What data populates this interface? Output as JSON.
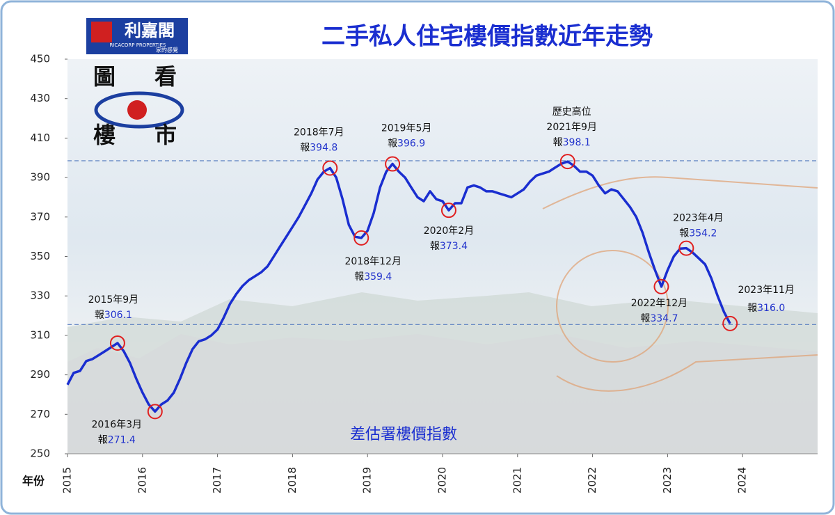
{
  "header": {
    "logo": "利嘉閣",
    "logo_en": "RICACORP PROPERTIES",
    "logo_slogan": "家的感覺",
    "badge": [
      "圖",
      "看",
      "樓",
      "市"
    ]
  },
  "chart_data": {
    "type": "line",
    "title": "二手私人住宅樓價指數近年走勢",
    "source": "差估署樓價指數",
    "x_label": "年份",
    "color": "#1a2ed0",
    "x": [
      2015.0,
      2015.083,
      2015.167,
      2015.25,
      2015.333,
      2015.417,
      2015.5,
      2015.583,
      2015.667,
      2015.75,
      2015.833,
      2015.917,
      2016.0,
      2016.083,
      2016.167,
      2016.25,
      2016.333,
      2016.417,
      2016.5,
      2016.583,
      2016.667,
      2016.75,
      2016.833,
      2016.917,
      2017.0,
      2017.083,
      2017.167,
      2017.25,
      2017.333,
      2017.417,
      2017.5,
      2017.583,
      2017.667,
      2017.75,
      2017.833,
      2017.917,
      2018.0,
      2018.083,
      2018.167,
      2018.25,
      2018.333,
      2018.417,
      2018.5,
      2018.583,
      2018.667,
      2018.75,
      2018.833,
      2018.917,
      2019.0,
      2019.083,
      2019.167,
      2019.25,
      2019.333,
      2019.417,
      2019.5,
      2019.583,
      2019.667,
      2019.75,
      2019.833,
      2019.917,
      2020.0,
      2020.083,
      2020.167,
      2020.25,
      2020.333,
      2020.417,
      2020.5,
      2020.583,
      2020.667,
      2020.75,
      2020.833,
      2020.917,
      2021.0,
      2021.083,
      2021.167,
      2021.25,
      2021.333,
      2021.417,
      2021.5,
      2021.583,
      2021.667,
      2021.75,
      2021.833,
      2021.917,
      2022.0,
      2022.083,
      2022.167,
      2022.25,
      2022.333,
      2022.417,
      2022.5,
      2022.583,
      2022.667,
      2022.75,
      2022.833,
      2022.917,
      2023.0,
      2023.083,
      2023.167,
      2023.25,
      2023.333,
      2023.417,
      2023.5,
      2023.583,
      2023.667,
      2023.75,
      2023.833
    ],
    "values": [
      285,
      291,
      292,
      297,
      298,
      300,
      302,
      304,
      306.1,
      302,
      296,
      288,
      281,
      275,
      271.4,
      275,
      277,
      281,
      288,
      296,
      303,
      307,
      308,
      310,
      313,
      319,
      326,
      331,
      335,
      338,
      340,
      342,
      345,
      350,
      355,
      360,
      365,
      370,
      376,
      382,
      389,
      393,
      394.8,
      390,
      379,
      366,
      360,
      359.4,
      363,
      372,
      385,
      393,
      396.9,
      393,
      390,
      385,
      380,
      378,
      383,
      379,
      378,
      373.4,
      377,
      377,
      385,
      386,
      385,
      383,
      383,
      382,
      381,
      380,
      382,
      384,
      388,
      391,
      392,
      393,
      395,
      397,
      398.1,
      396,
      393,
      393,
      391,
      386,
      382,
      384,
      383,
      379,
      375,
      370,
      362,
      352,
      343,
      334.7,
      343,
      350,
      354,
      354.2,
      352,
      349,
      346,
      339,
      330,
      322,
      316.0
    ],
    "annotations": [
      {
        "label": "2015年9月",
        "prefix": "報",
        "x": 2015.667,
        "value": 306.1,
        "value_label": "306.1"
      },
      {
        "label": "2016年3月",
        "prefix": "報",
        "x": 2016.167,
        "value": 271.4,
        "value_label": "271.4"
      },
      {
        "label": "2018年7月",
        "prefix": "報",
        "x": 2018.5,
        "value": 394.8,
        "value_label": "394.8"
      },
      {
        "label": "2018年12月",
        "prefix": "報",
        "x": 2018.917,
        "value": 359.4,
        "value_label": "359.4"
      },
      {
        "label": "2019年5月",
        "prefix": "報",
        "x": 2019.333,
        "value": 396.9,
        "value_label": "396.9"
      },
      {
        "label": "2020年2月",
        "prefix": "報",
        "x": 2020.083,
        "value": 373.4,
        "value_label": "373.4"
      },
      {
        "title": "歷史高位",
        "label": "2021年9月",
        "prefix": "報",
        "x": 2021.667,
        "value": 398.1,
        "value_label": "398.1"
      },
      {
        "label": "2022年12月",
        "prefix": "報",
        "x": 2022.917,
        "value": 334.7,
        "value_label": "334.7"
      },
      {
        "label": "2023年4月",
        "prefix": "報",
        "x": 2023.25,
        "value": 354.2,
        "value_label": "354.2"
      },
      {
        "label": "2023年11月",
        "prefix": "報",
        "x": 2023.833,
        "value": 316.0,
        "value_label": "316.0"
      }
    ],
    "reference_lines": [
      398.5,
      315.5
    ],
    "xlim": [
      2015,
      2025
    ],
    "xticks": [
      2015,
      2016,
      2017,
      2018,
      2019,
      2020,
      2021,
      2022,
      2023,
      2024
    ],
    "ylim": [
      250,
      450
    ],
    "yticks": [
      250,
      270,
      290,
      310,
      330,
      350,
      370,
      390,
      410,
      430,
      450
    ]
  }
}
